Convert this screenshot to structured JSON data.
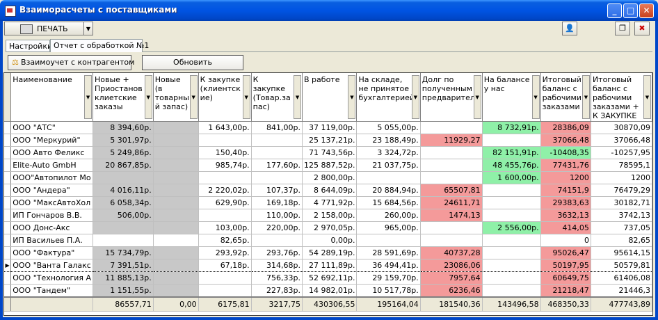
{
  "window": {
    "title": "Взаиморасчеты с поставщиками"
  },
  "toolbar": {
    "print_label": "ПЕЧАТЬ"
  },
  "tabs": [
    "Настройки",
    "Отчет с обработкой №1"
  ],
  "panel": {
    "counterparty_button": "Взаимоучет с контрагентом",
    "refresh_button": "Обновить"
  },
  "colors": {
    "red": "#f49a9a",
    "green": "#8ff0a8",
    "gray": "#c8c8c8"
  },
  "grid": {
    "columns": [
      "Наименование",
      "Новые + Приостанов клиетские заказы",
      "Новые (в товарны й запас)",
      "К закупке (клиентск ие)",
      "К закупке (Товар.за пас)",
      "В работе",
      "На складе, не принятое бухгалтерией",
      "Долг по полученным предварител",
      "На балансе у нас",
      "Итоговый баланс с рабочими заказами",
      "Итоговый баланс с рабочими заказами + К ЗАКУПКЕ"
    ],
    "rows": [
      {
        "cells": [
          "ООО \"АТС\"",
          "8 394,60р.",
          "",
          "1 643,00р.",
          "841,00р.",
          "37 119,00р.",
          "5 055,00р.",
          "",
          "8 732,91р.",
          "28386,09",
          "30870,09"
        ],
        "colors": [
          "",
          "gray",
          "gray",
          "",
          "",
          "",
          "",
          "",
          "green",
          "red",
          ""
        ]
      },
      {
        "cells": [
          "ООО \"Меркурий\"",
          "5 301,97р.",
          "",
          "",
          "",
          "25 137,21р.",
          "23 188,49р.",
          "11929,27",
          "",
          "37066,48",
          "37066,48"
        ],
        "colors": [
          "",
          "gray",
          "gray",
          "",
          "",
          "",
          "",
          "red",
          "",
          "red",
          ""
        ]
      },
      {
        "cells": [
          "ООО Авто Феликс",
          "5 249,86р.",
          "",
          "150,40р.",
          "",
          "71 743,56р.",
          "3 324,72р.",
          "",
          "82 151,91р.",
          "-10408,35",
          "-10257,95"
        ],
        "colors": [
          "",
          "gray",
          "gray",
          "",
          "",
          "",
          "",
          "",
          "green",
          "green",
          ""
        ]
      },
      {
        "cells": [
          "Elite-Auto GmbH",
          "20 867,85р.",
          "",
          "985,74р.",
          "177,60р.",
          "125 887,52р.",
          "21 037,75р.",
          "",
          "48 455,76р.",
          "77431,76",
          "78595,1"
        ],
        "colors": [
          "",
          "gray",
          "gray",
          "",
          "",
          "",
          "",
          "",
          "green",
          "red",
          ""
        ]
      },
      {
        "cells": [
          "ООО\"Автопилот Мо",
          "",
          "",
          "",
          "",
          "2 800,00р.",
          "",
          "",
          "1 600,00р.",
          "1200",
          "1200"
        ],
        "colors": [
          "",
          "gray",
          "gray",
          "",
          "",
          "",
          "",
          "",
          "green",
          "red",
          ""
        ]
      },
      {
        "cells": [
          "ООО \"Андера\"",
          "4 016,11р.",
          "",
          "2 220,02р.",
          "107,37р.",
          "8 644,09р.",
          "20 884,94р.",
          "65507,81",
          "",
          "74151,9",
          "76479,29"
        ],
        "colors": [
          "",
          "gray",
          "gray",
          "",
          "",
          "",
          "",
          "red",
          "",
          "red",
          ""
        ]
      },
      {
        "cells": [
          "ООО \"МаксАвтоХол",
          "6 058,34р.",
          "",
          "629,90р.",
          "169,18р.",
          "4 771,92р.",
          "15 684,56р.",
          "24611,71",
          "",
          "29383,63",
          "30182,71"
        ],
        "colors": [
          "",
          "gray",
          "gray",
          "",
          "",
          "",
          "",
          "red",
          "",
          "red",
          ""
        ]
      },
      {
        "cells": [
          "ИП Гончаров В.В.",
          "506,00р.",
          "",
          "",
          "110,00р.",
          "2 158,00р.",
          "260,00р.",
          "1474,13",
          "",
          "3632,13",
          "3742,13"
        ],
        "colors": [
          "",
          "gray",
          "gray",
          "",
          "",
          "",
          "",
          "red",
          "",
          "red",
          ""
        ]
      },
      {
        "cells": [
          "ООО Донс-Акс",
          "",
          "",
          "103,00р.",
          "220,00р.",
          "2 970,05р.",
          "965,00р.",
          "",
          "2 556,00р.",
          "414,05",
          "737,05"
        ],
        "colors": [
          "",
          "gray",
          "gray",
          "",
          "",
          "",
          "",
          "",
          "green",
          "red",
          ""
        ]
      },
      {
        "cells": [
          "ИП Васильев П.А.",
          "",
          "",
          "82,65р.",
          "",
          "0,00р.",
          "",
          "",
          "",
          "0",
          "82,65"
        ],
        "colors": [
          "",
          "",
          "",
          "",
          "",
          "",
          "",
          "",
          "",
          "",
          ""
        ]
      },
      {
        "cells": [
          "ООО \"Фактура\"",
          "15 734,79р.",
          "",
          "293,92р.",
          "293,76р.",
          "54 289,19р.",
          "28 591,69р.",
          "40737,28",
          "",
          "95026,47",
          "95614,15"
        ],
        "colors": [
          "",
          "gray",
          "gray",
          "",
          "",
          "",
          "",
          "red",
          "",
          "red",
          ""
        ]
      },
      {
        "cells": [
          "ООО \"Ванта Галакс",
          "7 391,51р.",
          "",
          "67,18р.",
          "314,68р.",
          "27 111,89р.",
          "36 494,41р.",
          "23086,06",
          "",
          "50197,95",
          "50579,81"
        ],
        "colors": [
          "",
          "gray",
          "gray",
          "",
          "",
          "",
          "",
          "red",
          "",
          "red",
          ""
        ],
        "current": true
      },
      {
        "cells": [
          "ООО \"Технология А",
          "11 885,13р.",
          "",
          "",
          "756,33р.",
          "52 692,11р.",
          "29 159,70р.",
          "7957,64",
          "",
          "60649,75",
          "61406,08"
        ],
        "colors": [
          "",
          "gray",
          "gray",
          "",
          "",
          "",
          "",
          "red",
          "",
          "red",
          ""
        ]
      },
      {
        "cells": [
          "ООО \"Тандем\"",
          "1 151,55р.",
          "",
          "",
          "227,83р.",
          "14 982,01р.",
          "10 517,78р.",
          "6236,46",
          "",
          "21218,47",
          "21446,3"
        ],
        "colors": [
          "",
          "gray",
          "gray",
          "",
          "",
          "",
          "",
          "red",
          "",
          "red",
          ""
        ]
      }
    ],
    "totals": [
      "",
      "86557,71",
      "0,00",
      "6175,81",
      "3217,75",
      "430306,55",
      "195164,04",
      "181540,36",
      "143496,58",
      "468350,33",
      "477743,89"
    ]
  }
}
